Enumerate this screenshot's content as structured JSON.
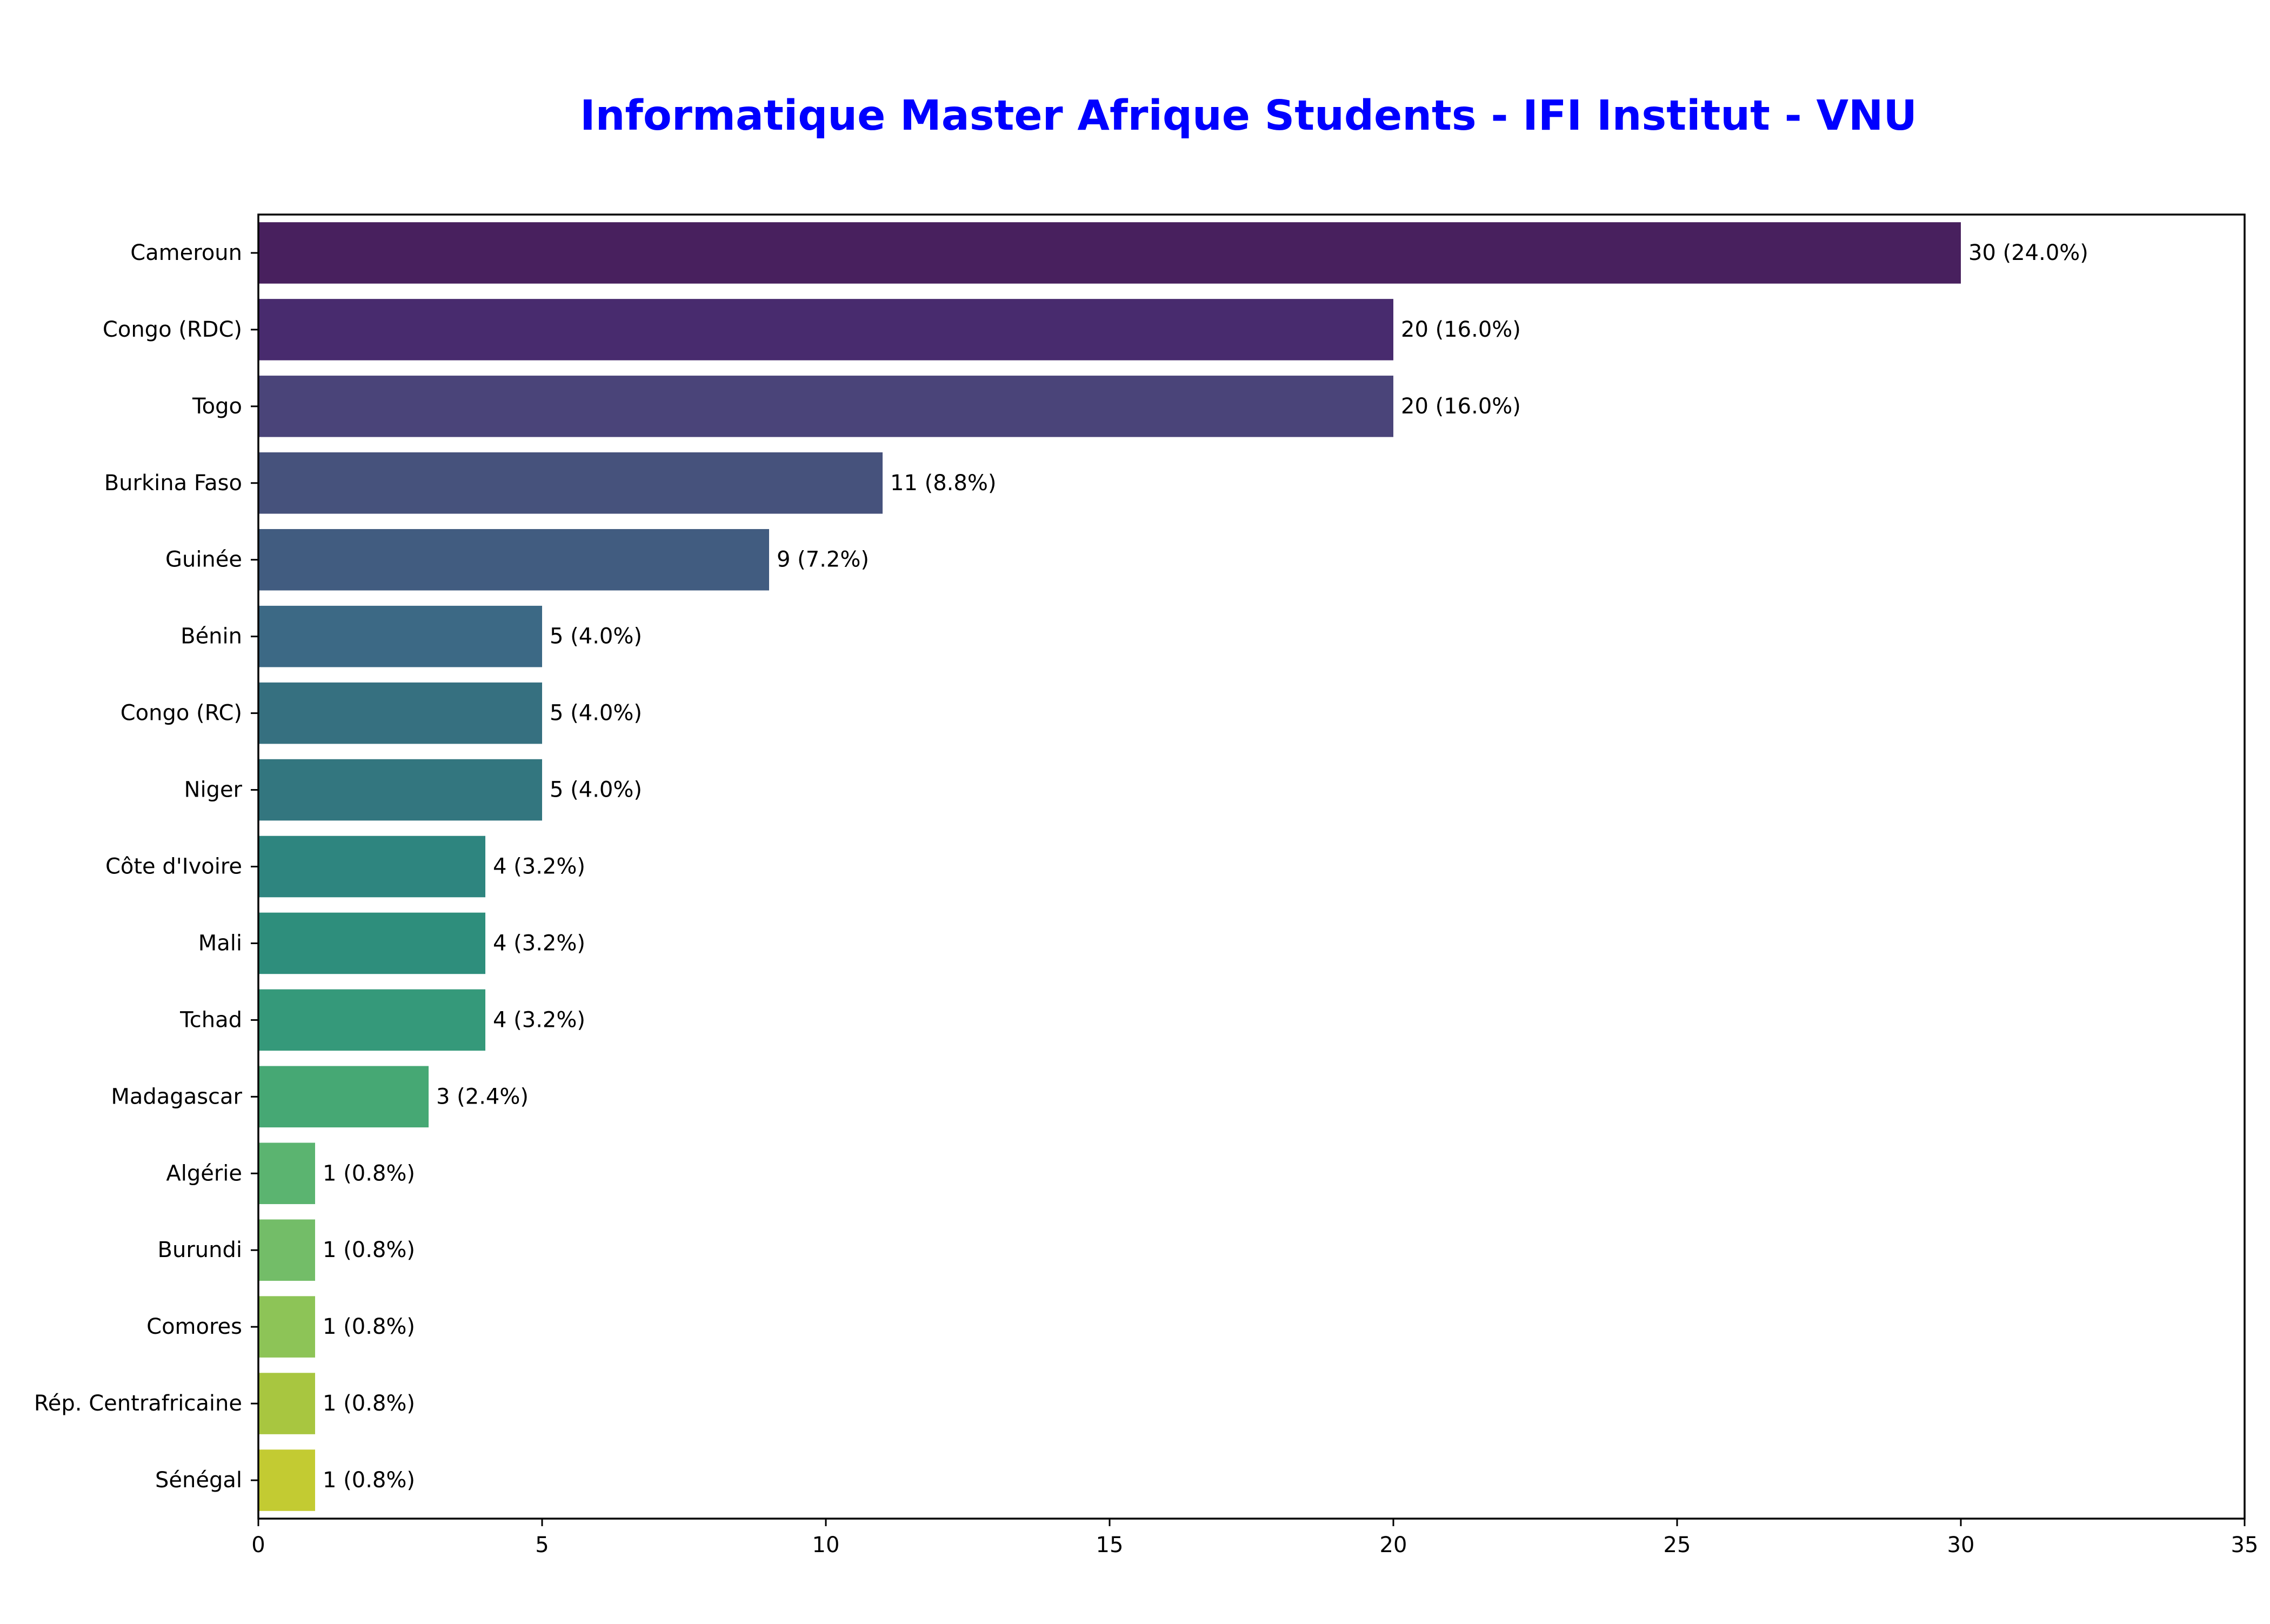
{
  "chart_data": {
    "type": "bar",
    "orientation": "horizontal",
    "title": "Informatique Master Afrique Students - IFI Institut - VNU",
    "title_color": "#0000ff",
    "xlabel": "",
    "ylabel": "",
    "xlim": [
      0,
      35
    ],
    "x_ticks": [
      0,
      5,
      10,
      15,
      20,
      25,
      30,
      35
    ],
    "grid": false,
    "categories": [
      "Cameroun",
      "Congo (RDC)",
      "Togo",
      "Burkina Faso",
      "Guinée",
      "Bénin",
      "Congo (RC)",
      "Niger",
      "Côte d'Ivoire",
      "Mali",
      "Tchad",
      "Madagascar",
      "Algérie",
      "Burundi",
      "Comores",
      "Rép. Centrafricaine",
      "Sénégal"
    ],
    "values": [
      30,
      20,
      20,
      11,
      9,
      5,
      5,
      5,
      4,
      4,
      4,
      3,
      1,
      1,
      1,
      1,
      1
    ],
    "data_labels": [
      "30 (24.0%)",
      "20 (16.0%)",
      "20 (16.0%)",
      "11 (8.8%)",
      "9 (7.2%)",
      "5 (4.0%)",
      "5 (4.0%)",
      "5 (4.0%)",
      "4 (3.2%)",
      "4 (3.2%)",
      "4 (3.2%)",
      "3 (2.4%)",
      "1 (0.8%)",
      "1 (0.8%)",
      "1 (0.8%)",
      "1 (0.8%)",
      "1 (0.8%)"
    ],
    "colors": [
      "#48205e",
      "#482b6e",
      "#4a4479",
      "#46527c",
      "#415c80",
      "#3c6985",
      "#367080",
      "#33767f",
      "#2e857f",
      "#2e8e7c",
      "#35997a",
      "#46a874",
      "#5bb470",
      "#73bd68",
      "#8dc457",
      "#a8c640",
      "#c3cb32"
    ]
  }
}
